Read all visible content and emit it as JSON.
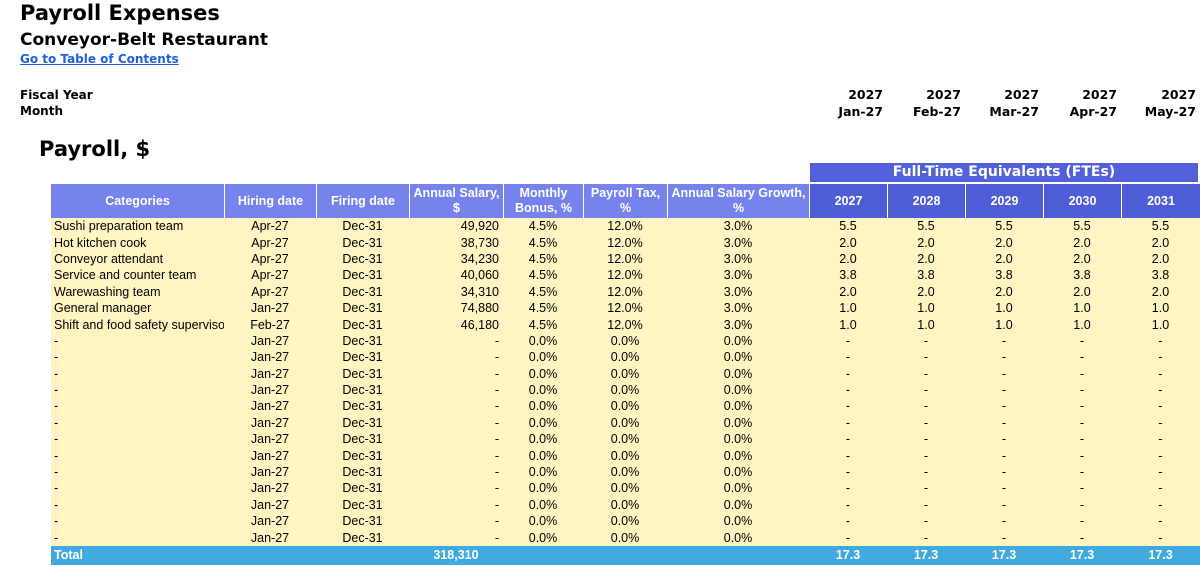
{
  "header": {
    "title": "Payroll Expenses",
    "subtitle": "Conveyor-Belt Restaurant",
    "toc_link": "Go to Table of Contents"
  },
  "timeline": {
    "fiscal_year_label": "Fiscal Year",
    "month_label": "Month",
    "periods": [
      {
        "year": "2027",
        "month": "Jan-27"
      },
      {
        "year": "2027",
        "month": "Feb-27"
      },
      {
        "year": "2027",
        "month": "Mar-27"
      },
      {
        "year": "2027",
        "month": "Apr-27"
      },
      {
        "year": "2027",
        "month": "May-27"
      }
    ]
  },
  "section": {
    "title": "Payroll, $",
    "fte_banner": "Full-Time Equivalents (FTEs)"
  },
  "table": {
    "columns": {
      "category": "Categories",
      "hiring": "Hiring date",
      "firing": "Firing date",
      "salary": "Annual Salary, $",
      "bonus": "Monthly Bonus, %",
      "tax": "Payroll Tax, %",
      "growth": "Annual Salary Growth, %",
      "years": [
        "2027",
        "2028",
        "2029",
        "2030",
        "2031"
      ]
    },
    "rows": [
      {
        "category": "Sushi preparation team",
        "hiring": "Apr-27",
        "firing": "Dec-31",
        "salary": "49,920",
        "bonus": "4.5%",
        "tax": "12.0%",
        "growth": "3.0%",
        "fte": [
          "5.5",
          "5.5",
          "5.5",
          "5.5",
          "5.5"
        ]
      },
      {
        "category": "Hot kitchen cook",
        "hiring": "Apr-27",
        "firing": "Dec-31",
        "salary": "38,730",
        "bonus": "4.5%",
        "tax": "12.0%",
        "growth": "3.0%",
        "fte": [
          "2.0",
          "2.0",
          "2.0",
          "2.0",
          "2.0"
        ]
      },
      {
        "category": "Conveyor attendant",
        "hiring": "Apr-27",
        "firing": "Dec-31",
        "salary": "34,230",
        "bonus": "4.5%",
        "tax": "12.0%",
        "growth": "3.0%",
        "fte": [
          "2.0",
          "2.0",
          "2.0",
          "2.0",
          "2.0"
        ]
      },
      {
        "category": "Service and counter team",
        "hiring": "Apr-27",
        "firing": "Dec-31",
        "salary": "40,060",
        "bonus": "4.5%",
        "tax": "12.0%",
        "growth": "3.0%",
        "fte": [
          "3.8",
          "3.8",
          "3.8",
          "3.8",
          "3.8"
        ]
      },
      {
        "category": "Warewashing team",
        "hiring": "Apr-27",
        "firing": "Dec-31",
        "salary": "34,310",
        "bonus": "4.5%",
        "tax": "12.0%",
        "growth": "3.0%",
        "fte": [
          "2.0",
          "2.0",
          "2.0",
          "2.0",
          "2.0"
        ]
      },
      {
        "category": "General manager",
        "hiring": "Jan-27",
        "firing": "Dec-31",
        "salary": "74,880",
        "bonus": "4.5%",
        "tax": "12.0%",
        "growth": "3.0%",
        "fte": [
          "1.0",
          "1.0",
          "1.0",
          "1.0",
          "1.0"
        ]
      },
      {
        "category": "Shift and food safety supervisor",
        "hiring": "Feb-27",
        "firing": "Dec-31",
        "salary": "46,180",
        "bonus": "4.5%",
        "tax": "12.0%",
        "growth": "3.0%",
        "fte": [
          "1.0",
          "1.0",
          "1.0",
          "1.0",
          "1.0"
        ]
      },
      {
        "category": "-",
        "hiring": "Jan-27",
        "firing": "Dec-31",
        "salary": "-",
        "bonus": "0.0%",
        "tax": "0.0%",
        "growth": "0.0%",
        "fte": [
          "-",
          "-",
          "-",
          "-",
          "-"
        ]
      },
      {
        "category": "-",
        "hiring": "Jan-27",
        "firing": "Dec-31",
        "salary": "-",
        "bonus": "0.0%",
        "tax": "0.0%",
        "growth": "0.0%",
        "fte": [
          "-",
          "-",
          "-",
          "-",
          "-"
        ]
      },
      {
        "category": "-",
        "hiring": "Jan-27",
        "firing": "Dec-31",
        "salary": "-",
        "bonus": "0.0%",
        "tax": "0.0%",
        "growth": "0.0%",
        "fte": [
          "-",
          "-",
          "-",
          "-",
          "-"
        ]
      },
      {
        "category": "-",
        "hiring": "Jan-27",
        "firing": "Dec-31",
        "salary": "-",
        "bonus": "0.0%",
        "tax": "0.0%",
        "growth": "0.0%",
        "fte": [
          "-",
          "-",
          "-",
          "-",
          "-"
        ]
      },
      {
        "category": "-",
        "hiring": "Jan-27",
        "firing": "Dec-31",
        "salary": "-",
        "bonus": "0.0%",
        "tax": "0.0%",
        "growth": "0.0%",
        "fte": [
          "-",
          "-",
          "-",
          "-",
          "-"
        ]
      },
      {
        "category": "-",
        "hiring": "Jan-27",
        "firing": "Dec-31",
        "salary": "-",
        "bonus": "0.0%",
        "tax": "0.0%",
        "growth": "0.0%",
        "fte": [
          "-",
          "-",
          "-",
          "-",
          "-"
        ]
      },
      {
        "category": "-",
        "hiring": "Jan-27",
        "firing": "Dec-31",
        "salary": "-",
        "bonus": "0.0%",
        "tax": "0.0%",
        "growth": "0.0%",
        "fte": [
          "-",
          "-",
          "-",
          "-",
          "-"
        ]
      },
      {
        "category": "-",
        "hiring": "Jan-27",
        "firing": "Dec-31",
        "salary": "-",
        "bonus": "0.0%",
        "tax": "0.0%",
        "growth": "0.0%",
        "fte": [
          "-",
          "-",
          "-",
          "-",
          "-"
        ]
      },
      {
        "category": "-",
        "hiring": "Jan-27",
        "firing": "Dec-31",
        "salary": "-",
        "bonus": "0.0%",
        "tax": "0.0%",
        "growth": "0.0%",
        "fte": [
          "-",
          "-",
          "-",
          "-",
          "-"
        ]
      },
      {
        "category": "-",
        "hiring": "Jan-27",
        "firing": "Dec-31",
        "salary": "-",
        "bonus": "0.0%",
        "tax": "0.0%",
        "growth": "0.0%",
        "fte": [
          "-",
          "-",
          "-",
          "-",
          "-"
        ]
      },
      {
        "category": "-",
        "hiring": "Jan-27",
        "firing": "Dec-31",
        "salary": "-",
        "bonus": "0.0%",
        "tax": "0.0%",
        "growth": "0.0%",
        "fte": [
          "-",
          "-",
          "-",
          "-",
          "-"
        ]
      },
      {
        "category": "-",
        "hiring": "Jan-27",
        "firing": "Dec-31",
        "salary": "-",
        "bonus": "0.0%",
        "tax": "0.0%",
        "growth": "0.0%",
        "fte": [
          "-",
          "-",
          "-",
          "-",
          "-"
        ]
      },
      {
        "category": "-",
        "hiring": "Jan-27",
        "firing": "Dec-31",
        "salary": "-",
        "bonus": "0.0%",
        "tax": "0.0%",
        "growth": "0.0%",
        "fte": [
          "-",
          "-",
          "-",
          "-",
          "-"
        ]
      }
    ],
    "total": {
      "label": "Total",
      "salary": "318,310",
      "fte": [
        "17.3",
        "17.3",
        "17.3",
        "17.3",
        "17.3"
      ]
    }
  },
  "colors": {
    "header_bg": "#7683ec",
    "fte_header_bg": "#4f5dd6",
    "cell_bg": "#fff4c2",
    "total_bg": "#41a9dd",
    "link": "#1f5fe0"
  }
}
